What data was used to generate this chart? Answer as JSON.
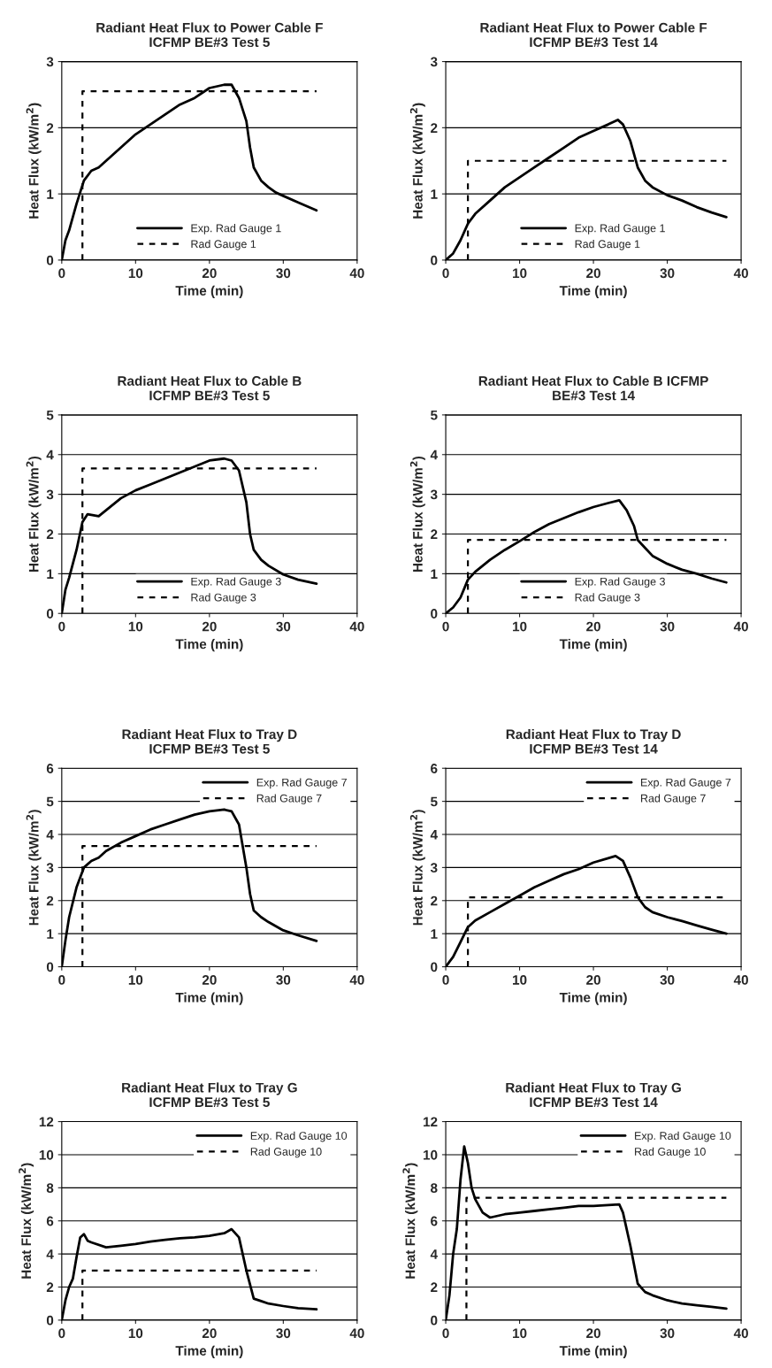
{
  "chart_data": [
    {
      "type": "line",
      "title": "Radiant Heat Flux to Power Cable F\nICFMP BE#3 Test 5",
      "xlabel": "Time (min)",
      "ylabel": "Heat Flux (kW/m$^{2}$)",
      "xlim": [
        0,
        40
      ],
      "xticks": [
        0,
        10,
        20,
        30,
        40
      ],
      "ylim": [
        0,
        3
      ],
      "yticks": [
        0,
        1,
        2,
        3
      ],
      "grid": "y",
      "legend": "bottom",
      "series": [
        {
          "name": "Exp. Rad Gauge 1",
          "color": "#000000",
          "line_style": "solid",
          "x": [
            0,
            0.5,
            1,
            2,
            3,
            4,
            5,
            6,
            8,
            10,
            12,
            14,
            16,
            18,
            20,
            22,
            23,
            24,
            25,
            25.5,
            26,
            27,
            28,
            29,
            30,
            32,
            34.5
          ],
          "values": [
            0,
            0.3,
            0.45,
            0.85,
            1.2,
            1.35,
            1.4,
            1.5,
            1.7,
            1.9,
            2.05,
            2.2,
            2.35,
            2.45,
            2.6,
            2.65,
            2.65,
            2.45,
            2.1,
            1.7,
            1.4,
            1.2,
            1.1,
            1.02,
            0.97,
            0.87,
            0.75
          ]
        },
        {
          "name": "Rad Gauge 1",
          "color": "#000000",
          "line_style": "dashed",
          "x": [
            2.8,
            2.8,
            34.5
          ],
          "values": [
            0,
            2.55,
            2.55
          ]
        }
      ]
    },
    {
      "type": "line",
      "title": "Radiant Heat Flux to Power Cable F\nICFMP BE#3 Test 14",
      "xlabel": "Time (min)",
      "ylabel": "Heat Flux (kW/m$^{2}$)",
      "xlim": [
        0,
        40
      ],
      "xticks": [
        0,
        10,
        20,
        30,
        40
      ],
      "ylim": [
        0,
        3
      ],
      "yticks": [
        0,
        1,
        2,
        3
      ],
      "grid": "y",
      "legend": "bottom",
      "series": [
        {
          "name": "Exp. Rad Gauge 1",
          "color": "#000000",
          "line_style": "solid",
          "x": [
            0,
            1,
            2,
            3,
            4,
            6,
            8,
            10,
            12,
            14,
            16,
            18,
            20,
            22,
            23.3,
            24,
            25,
            26,
            27,
            28,
            30,
            32,
            34,
            36,
            38
          ],
          "values": [
            0,
            0.1,
            0.3,
            0.55,
            0.7,
            0.9,
            1.1,
            1.25,
            1.4,
            1.55,
            1.7,
            1.85,
            1.95,
            2.05,
            2.12,
            2.05,
            1.8,
            1.4,
            1.2,
            1.1,
            0.98,
            0.9,
            0.8,
            0.72,
            0.65
          ]
        },
        {
          "name": "Rad Gauge 1",
          "color": "#000000",
          "line_style": "dashed",
          "x": [
            3,
            3,
            38
          ],
          "values": [
            0,
            1.5,
            1.5
          ]
        }
      ]
    },
    {
      "type": "line",
      "title": "Radiant Heat Flux to Cable B\nICFMP BE#3 Test 5",
      "xlabel": "Time (min)",
      "ylabel": "Heat Flux (kW/m$^{2}$)",
      "xlim": [
        0,
        40
      ],
      "xticks": [
        0,
        10,
        20,
        30,
        40
      ],
      "ylim": [
        0,
        5
      ],
      "yticks": [
        0,
        1,
        2,
        3,
        4,
        5
      ],
      "grid": "y",
      "legend": "bottom",
      "series": [
        {
          "name": "Exp. Rad Gauge 3",
          "color": "#000000",
          "line_style": "solid",
          "x": [
            0,
            0.5,
            1,
            2,
            2.8,
            3.5,
            5,
            6,
            8,
            10,
            12,
            14,
            16,
            18,
            20,
            22,
            23,
            24,
            25,
            25.5,
            26,
            27,
            28,
            30,
            32,
            34.5
          ],
          "values": [
            0,
            0.6,
            0.9,
            1.6,
            2.3,
            2.5,
            2.45,
            2.6,
            2.9,
            3.1,
            3.25,
            3.4,
            3.55,
            3.7,
            3.85,
            3.9,
            3.85,
            3.6,
            2.8,
            2.0,
            1.6,
            1.35,
            1.2,
            0.98,
            0.85,
            0.75
          ]
        },
        {
          "name": "Rad Gauge 3",
          "color": "#000000",
          "line_style": "dashed",
          "x": [
            2.8,
            2.8,
            34.5
          ],
          "values": [
            0,
            3.65,
            3.65
          ]
        }
      ]
    },
    {
      "type": "line",
      "title": "Radiant Heat Flux to Cable B ICFMP\nBE#3 Test 14",
      "xlabel": "Time (min)",
      "ylabel": "Heat Flux (kW/m$^{2}$)",
      "xlim": [
        0,
        40
      ],
      "xticks": [
        0,
        10,
        20,
        30,
        40
      ],
      "ylim": [
        0,
        5
      ],
      "yticks": [
        0,
        1,
        2,
        3,
        4,
        5
      ],
      "grid": "y",
      "legend": "bottom",
      "series": [
        {
          "name": "Exp. Rad Gauge 3",
          "color": "#000000",
          "line_style": "solid",
          "x": [
            0,
            1,
            2,
            3,
            4,
            6,
            8,
            10,
            12,
            14,
            16,
            18,
            20,
            22,
            23.5,
            24.5,
            25.5,
            26,
            27,
            28,
            30,
            32,
            34,
            36,
            38
          ],
          "values": [
            0,
            0.15,
            0.4,
            0.85,
            1.05,
            1.35,
            1.6,
            1.82,
            2.05,
            2.25,
            2.4,
            2.55,
            2.68,
            2.78,
            2.85,
            2.6,
            2.2,
            1.85,
            1.65,
            1.45,
            1.25,
            1.1,
            1.0,
            0.88,
            0.78
          ]
        },
        {
          "name": "Rad Gauge 3",
          "color": "#000000",
          "line_style": "dashed",
          "x": [
            3,
            3,
            38
          ],
          "values": [
            0,
            1.85,
            1.85
          ]
        }
      ]
    },
    {
      "type": "line",
      "title": "Radiant Heat Flux to Tray D\nICFMP BE#3 Test 5",
      "xlabel": "Time (min)",
      "ylabel": "Heat Flux (kW/m$^{2}$)",
      "xlim": [
        0,
        40
      ],
      "xticks": [
        0,
        10,
        20,
        30,
        40
      ],
      "ylim": [
        0,
        6
      ],
      "yticks": [
        0,
        1,
        2,
        3,
        4,
        5,
        6
      ],
      "grid": "y",
      "legend": "top right",
      "series": [
        {
          "name": "Exp. Rad Gauge 7",
          "color": "#000000",
          "line_style": "solid",
          "x": [
            0,
            0.5,
            1,
            2,
            3,
            4,
            5,
            6,
            8,
            10,
            12,
            14,
            16,
            18,
            20,
            22,
            23,
            24,
            25,
            25.5,
            26,
            27,
            28,
            30,
            32,
            34.5
          ],
          "values": [
            0,
            0.8,
            1.5,
            2.4,
            3.0,
            3.2,
            3.3,
            3.5,
            3.75,
            3.95,
            4.15,
            4.3,
            4.45,
            4.6,
            4.7,
            4.75,
            4.7,
            4.3,
            3.0,
            2.2,
            1.7,
            1.5,
            1.35,
            1.1,
            0.95,
            0.78
          ]
        },
        {
          "name": "Rad Gauge 7",
          "color": "#000000",
          "line_style": "dashed",
          "x": [
            2.8,
            2.8,
            34.5
          ],
          "values": [
            0,
            3.65,
            3.65
          ]
        }
      ]
    },
    {
      "type": "line",
      "title": "Radiant Heat Flux to Tray D\nICFMP BE#3 Test 14",
      "xlabel": "Time (min)",
      "ylabel": "Heat Flux (kW/m$^{2}$)",
      "xlim": [
        0,
        40
      ],
      "xticks": [
        0,
        10,
        20,
        30,
        40
      ],
      "ylim": [
        0,
        6
      ],
      "yticks": [
        0,
        1,
        2,
        3,
        4,
        5,
        6
      ],
      "grid": "y",
      "legend": "top right",
      "series": [
        {
          "name": "Exp. Rad Gauge 7",
          "color": "#000000",
          "line_style": "solid",
          "x": [
            0,
            1,
            2,
            3,
            4,
            6,
            8,
            10,
            12,
            14,
            16,
            18,
            20,
            22,
            23,
            24,
            25,
            26,
            27,
            28,
            30,
            32,
            34,
            36,
            38
          ],
          "values": [
            0,
            0.3,
            0.75,
            1.2,
            1.4,
            1.65,
            1.9,
            2.15,
            2.4,
            2.6,
            2.8,
            2.95,
            3.15,
            3.28,
            3.35,
            3.2,
            2.7,
            2.1,
            1.8,
            1.65,
            1.5,
            1.38,
            1.25,
            1.12,
            1.0
          ]
        },
        {
          "name": "Rad Gauge 7",
          "color": "#000000",
          "line_style": "dashed",
          "x": [
            3,
            3,
            38
          ],
          "values": [
            0,
            2.1,
            2.1
          ]
        }
      ]
    },
    {
      "type": "line",
      "title": "Radiant Heat Flux to Tray G\nICFMP BE#3 Test 5",
      "xlabel": "Time (min)",
      "ylabel": "Heat Flux (kW/m$^{2}$)",
      "xlim": [
        0,
        40
      ],
      "xticks": [
        0,
        10,
        20,
        30,
        40
      ],
      "ylim": [
        0,
        12
      ],
      "yticks": [
        0,
        2,
        4,
        6,
        8,
        10,
        12
      ],
      "grid": "y",
      "legend": "top right",
      "series": [
        {
          "name": "Exp. Rad Gauge 10",
          "color": "#000000",
          "line_style": "solid",
          "x": [
            0,
            0.5,
            1,
            1.5,
            2,
            2.5,
            3,
            3.5,
            4,
            6,
            8,
            10,
            12,
            14,
            16,
            18,
            20,
            22,
            23,
            24,
            25,
            26,
            27,
            28,
            30,
            32,
            34.5
          ],
          "values": [
            0,
            1.2,
            2.0,
            2.5,
            3.8,
            5.0,
            5.2,
            4.8,
            4.7,
            4.4,
            4.5,
            4.6,
            4.75,
            4.85,
            4.95,
            5.0,
            5.1,
            5.25,
            5.5,
            5.0,
            3.0,
            1.3,
            1.15,
            1.0,
            0.85,
            0.72,
            0.65
          ]
        },
        {
          "name": "Rad Gauge 10",
          "color": "#000000",
          "line_style": "dashed",
          "x": [
            2.8,
            2.8,
            34.5
          ],
          "values": [
            0,
            3.0,
            3.0
          ]
        }
      ]
    },
    {
      "type": "line",
      "title": "Radiant Heat Flux to Tray G\nICFMP BE#3 Test 14",
      "xlabel": "Time (min)",
      "ylabel": "Heat Flux (kW/m$^{2}$)",
      "xlim": [
        0,
        40
      ],
      "xticks": [
        0,
        10,
        20,
        30,
        40
      ],
      "ylim": [
        0,
        12
      ],
      "yticks": [
        0,
        2,
        4,
        6,
        8,
        10,
        12
      ],
      "grid": "y",
      "legend": "top right",
      "series": [
        {
          "name": "Exp. Rad Gauge 10",
          "color": "#000000",
          "line_style": "solid",
          "x": [
            0,
            0.5,
            1,
            1.5,
            2,
            2.5,
            3,
            3.5,
            4,
            5,
            6,
            8,
            10,
            12,
            14,
            16,
            18,
            20,
            22,
            23.5,
            24,
            25,
            26,
            27,
            28,
            30,
            32,
            34,
            36,
            38
          ],
          "values": [
            0,
            1.5,
            4.0,
            5.5,
            8.5,
            10.5,
            9.5,
            8.0,
            7.3,
            6.5,
            6.2,
            6.4,
            6.5,
            6.6,
            6.7,
            6.8,
            6.9,
            6.9,
            6.95,
            7.0,
            6.5,
            4.5,
            2.2,
            1.7,
            1.5,
            1.2,
            1.0,
            0.9,
            0.8,
            0.7
          ]
        },
        {
          "name": "Rad Gauge 10",
          "color": "#000000",
          "line_style": "dashed",
          "x": [
            2.8,
            2.8,
            38
          ],
          "values": [
            0,
            7.4,
            7.4
          ]
        }
      ]
    }
  ]
}
